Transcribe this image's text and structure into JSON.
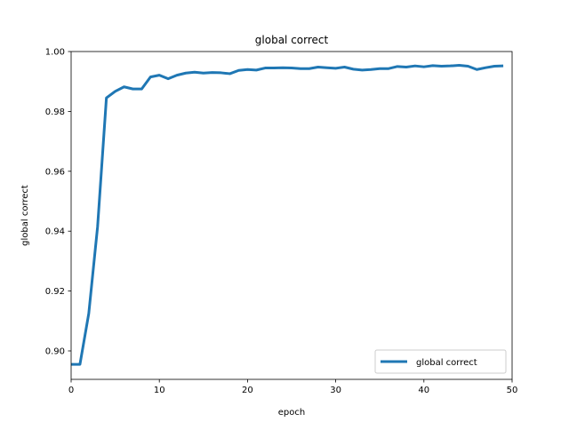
{
  "chart_data": {
    "type": "line",
    "title": "global correct",
    "xlabel": "epoch",
    "ylabel": "global correct",
    "xlim": [
      0,
      50
    ],
    "ylim": [
      0.8905,
      1.0
    ],
    "grid": false,
    "legend_position": "lower-right",
    "x_ticks": [
      0,
      10,
      20,
      30,
      40,
      50
    ],
    "x_tick_labels": [
      "0",
      "10",
      "20",
      "30",
      "40",
      "50"
    ],
    "y_ticks": [
      0.9,
      0.92,
      0.94,
      0.96,
      0.98,
      1.0
    ],
    "y_tick_labels": [
      "0.90",
      "0.92",
      "0.94",
      "0.96",
      "0.98",
      "1.00"
    ],
    "series": [
      {
        "name": "global correct",
        "color": "#1f77b4",
        "x": [
          0,
          1,
          2,
          3,
          4,
          5,
          6,
          7,
          8,
          9,
          10,
          11,
          12,
          13,
          14,
          15,
          16,
          17,
          18,
          19,
          20,
          21,
          22,
          23,
          24,
          25,
          26,
          27,
          28,
          29,
          30,
          31,
          32,
          33,
          34,
          35,
          36,
          37,
          38,
          39,
          40,
          41,
          42,
          43,
          44,
          45,
          46,
          47,
          48,
          49
        ],
        "y": [
          0.8955,
          0.8955,
          0.9125,
          0.9415,
          0.9845,
          0.9867,
          0.9882,
          0.9875,
          0.9875,
          0.9915,
          0.9921,
          0.9909,
          0.9921,
          0.9928,
          0.9931,
          0.9928,
          0.993,
          0.9929,
          0.9926,
          0.9937,
          0.994,
          0.9938,
          0.9945,
          0.9945,
          0.9946,
          0.9945,
          0.9943,
          0.9943,
          0.9948,
          0.9946,
          0.9944,
          0.9948,
          0.9941,
          0.9938,
          0.994,
          0.9943,
          0.9943,
          0.995,
          0.9948,
          0.9952,
          0.9949,
          0.9953,
          0.9951,
          0.9952,
          0.9954,
          0.9951,
          0.994,
          0.9946,
          0.9951,
          0.9952
        ]
      }
    ]
  }
}
